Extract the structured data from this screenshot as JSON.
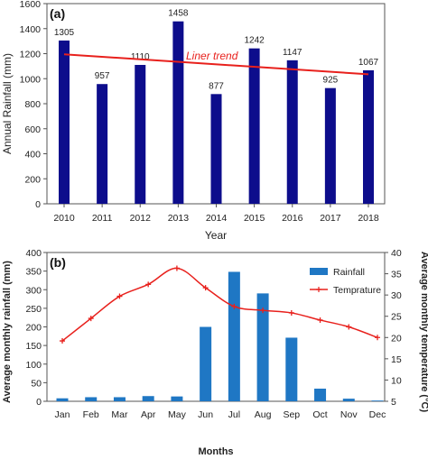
{
  "chart_data": [
    {
      "panel": "(a)",
      "type": "bar",
      "xlabel": "Year",
      "ylabel": "Annual Rainfall (mm)",
      "ylim": [
        0,
        1600
      ],
      "yticks": [
        0,
        200,
        400,
        600,
        800,
        1000,
        1200,
        1400,
        1600
      ],
      "categories": [
        "2010",
        "2011",
        "2012",
        "2013",
        "2014",
        "2015",
        "2016",
        "2017",
        "2018"
      ],
      "values": [
        1305,
        957,
        1110,
        1458,
        877,
        1242,
        1147,
        925,
        1067
      ],
      "data_labels": [
        "1305",
        "957",
        "1110",
        "1458",
        "877",
        "1242",
        "1147",
        "925",
        "1067"
      ],
      "bar_color": "#0d0d8c",
      "trend": {
        "label": "Liner trend",
        "start": 1195,
        "end": 1035,
        "color": "#e8201c"
      },
      "grid": false
    },
    {
      "panel": "(b)",
      "type": "bar",
      "xlabel": "Months",
      "ylabel": "Average monthly rainfall (mm)",
      "y2label": "Average monthly temperature (°C)",
      "ylim": [
        0,
        400
      ],
      "yticks": [
        0,
        50,
        100,
        150,
        200,
        250,
        300,
        350,
        400
      ],
      "y2lim": [
        5,
        40
      ],
      "y2ticks": [
        5,
        10,
        15,
        20,
        25,
        30,
        35,
        40
      ],
      "categories": [
        "Jan",
        "Feb",
        "Mar",
        "Apr",
        "May",
        "Jun",
        "Jul",
        "Aug",
        "Sep",
        "Oct",
        "Nov",
        "Dec"
      ],
      "legend_position": "top-right",
      "grid": false,
      "series": [
        {
          "name": "Rainfall",
          "type": "bar",
          "axis": "left",
          "color": "#1f77c4",
          "values": [
            8,
            11,
            11,
            14,
            13,
            200,
            348,
            290,
            171,
            34,
            7,
            2
          ]
        },
        {
          "name": "Temprature",
          "type": "line",
          "axis": "right",
          "color": "#e8201c",
          "values": [
            19.2,
            24.5,
            29.7,
            32.5,
            36.3,
            31.7,
            27.3,
            26.4,
            25.8,
            24.1,
            22.5,
            20.0
          ]
        }
      ]
    }
  ]
}
